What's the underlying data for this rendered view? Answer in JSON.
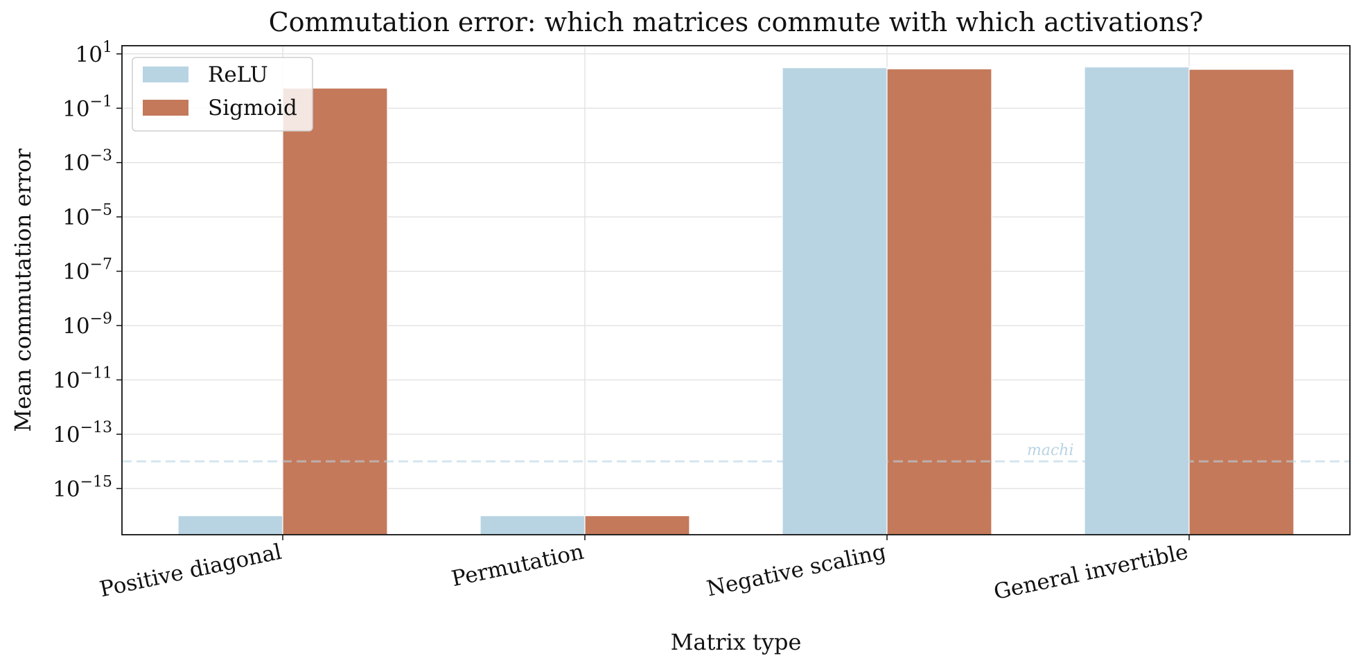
{
  "chart_data": {
    "type": "bar",
    "title": "Commutation error: which matrices commute with which activations?",
    "xlabel": "Matrix type",
    "ylabel": "Mean commutation error",
    "categories": [
      "Positive diagonal",
      "Permutation",
      "Negative scaling",
      "General invertible"
    ],
    "series": [
      {
        "name": "ReLU",
        "values": [
          1e-16,
          1e-16,
          3.1,
          3.3
        ],
        "color": "#b8d4e3"
      },
      {
        "name": "Sigmoid",
        "values": [
          0.55,
          1e-16,
          2.8,
          2.7
        ],
        "color": "#c4795a"
      }
    ],
    "yscale": "log",
    "ylim": [
      2e-17,
      20
    ],
    "ytick_values": [
      10.0,
      0.1,
      0.001,
      1e-05,
      1e-07,
      1e-09,
      1e-11,
      1e-13,
      1e-15
    ],
    "ytick_labels": [
      {
        "base": "10",
        "exp": "1"
      },
      {
        "base": "10",
        "exp": "−1"
      },
      {
        "base": "10",
        "exp": "−3"
      },
      {
        "base": "10",
        "exp": "−5"
      },
      {
        "base": "10",
        "exp": "−7"
      },
      {
        "base": "10",
        "exp": "−9"
      },
      {
        "base": "10",
        "exp": "−11"
      },
      {
        "base": "10",
        "exp": "−13"
      },
      {
        "base": "10",
        "exp": "−15"
      }
    ],
    "grid": true,
    "legend_position": "top-left",
    "threshold_line": {
      "value": 1e-14,
      "label": "machi",
      "color": "#b8d4e3"
    }
  }
}
